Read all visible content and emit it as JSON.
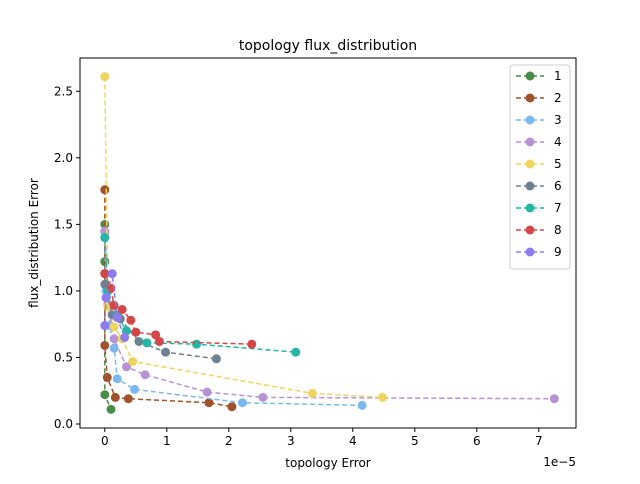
{
  "chart_data": {
    "type": "line",
    "title": "topology flux_distribution",
    "xlabel": "topology Error",
    "ylabel": "flux_distribution Error",
    "x_offset_label": "1e−5",
    "x_scale": 1e-05,
    "xlim": [
      -0.4,
      7.6
    ],
    "ylim": [
      -0.03,
      2.75
    ],
    "x_ticks": [
      0,
      1,
      2,
      3,
      4,
      5,
      6,
      7
    ],
    "x_tick_labels": [
      "0",
      "1",
      "2",
      "3",
      "4",
      "5",
      "6",
      "7"
    ],
    "y_ticks": [
      0.0,
      0.5,
      1.0,
      1.5,
      2.0,
      2.5
    ],
    "y_tick_labels": [
      "0.0",
      "0.5",
      "1.0",
      "1.5",
      "2.0",
      "2.5"
    ],
    "grid": false,
    "legend_position": "top-right",
    "series": [
      {
        "name": "1",
        "color": "#4a8c4a",
        "points": [
          [
            0.0,
            1.5
          ],
          [
            0.0,
            1.22
          ],
          [
            0.0,
            0.22
          ],
          [
            0.1,
            0.11
          ]
        ]
      },
      {
        "name": "2",
        "color": "#a0522d",
        "points": [
          [
            0.0,
            1.76
          ],
          [
            0.0,
            1.13
          ],
          [
            0.0,
            0.59
          ],
          [
            0.04,
            0.35
          ],
          [
            0.17,
            0.2
          ],
          [
            0.38,
            0.19
          ],
          [
            1.68,
            0.16
          ],
          [
            2.05,
            0.13
          ]
        ]
      },
      {
        "name": "3",
        "color": "#7ab8ee",
        "points": [
          [
            0.0,
            1.44
          ],
          [
            0.02,
            1.0
          ],
          [
            0.08,
            0.74
          ],
          [
            0.15,
            0.57
          ],
          [
            0.2,
            0.34
          ],
          [
            0.48,
            0.26
          ],
          [
            2.22,
            0.16
          ],
          [
            4.15,
            0.14
          ]
        ]
      },
      {
        "name": "4",
        "color": "#b793d6",
        "points": [
          [
            0.0,
            1.45
          ],
          [
            0.05,
            0.9
          ],
          [
            0.15,
            0.64
          ],
          [
            0.35,
            0.43
          ],
          [
            0.65,
            0.37
          ],
          [
            1.65,
            0.24
          ],
          [
            2.55,
            0.2
          ],
          [
            7.25,
            0.19
          ]
        ]
      },
      {
        "name": "5",
        "color": "#f0d460",
        "points": [
          [
            0.0,
            2.61
          ],
          [
            0.05,
            0.88
          ],
          [
            0.15,
            0.73
          ],
          [
            0.28,
            0.64
          ],
          [
            0.45,
            0.47
          ],
          [
            3.35,
            0.23
          ],
          [
            4.48,
            0.2
          ]
        ]
      },
      {
        "name": "6",
        "color": "#708090",
        "points": [
          [
            0.0,
            1.05
          ],
          [
            0.12,
            0.82
          ],
          [
            0.25,
            0.79
          ],
          [
            0.55,
            0.62
          ],
          [
            0.98,
            0.54
          ],
          [
            1.8,
            0.49
          ]
        ]
      },
      {
        "name": "7",
        "color": "#26b5a5",
        "points": [
          [
            0.0,
            1.4
          ],
          [
            0.05,
            1.0
          ],
          [
            0.2,
            0.82
          ],
          [
            0.35,
            0.7
          ],
          [
            0.68,
            0.61
          ],
          [
            1.48,
            0.6
          ],
          [
            3.08,
            0.54
          ]
        ]
      },
      {
        "name": "8",
        "color": "#d24848",
        "points": [
          [
            0.0,
            1.13
          ],
          [
            0.1,
            1.02
          ],
          [
            0.15,
            0.89
          ],
          [
            0.28,
            0.86
          ],
          [
            0.42,
            0.78
          ],
          [
            0.5,
            0.69
          ],
          [
            0.82,
            0.67
          ],
          [
            0.88,
            0.62
          ],
          [
            2.37,
            0.6
          ]
        ]
      },
      {
        "name": "9",
        "color": "#8c7cf0",
        "points": [
          [
            0.0,
            0.74
          ],
          [
            0.02,
            0.95
          ],
          [
            0.12,
            1.13
          ],
          [
            0.2,
            0.8
          ],
          [
            0.32,
            0.65
          ]
        ]
      }
    ]
  }
}
